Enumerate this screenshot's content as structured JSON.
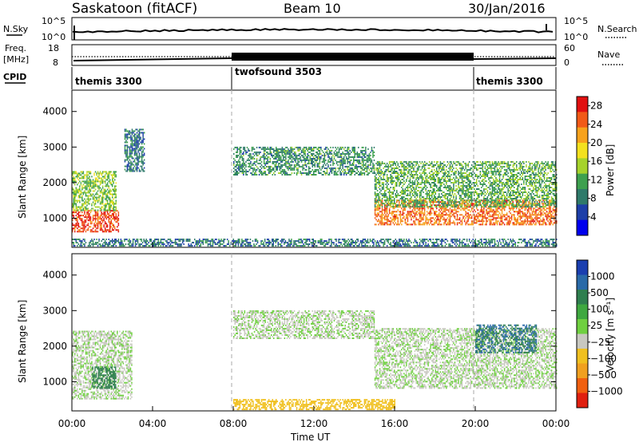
{
  "header": {
    "station": "Saskatoon (fitACF)",
    "beam": "Beam 10",
    "date": "30/Jan/2016"
  },
  "noise_panel": {
    "left_label": "N.Sky",
    "left_ticks": [
      "10^5",
      "10^0"
    ],
    "right_ticks": [
      "10^5",
      "10^0"
    ],
    "right_label": "N.Search"
  },
  "freq_panel": {
    "left_label_1": "Freq.",
    "left_label_2": "[MHz]",
    "left_ticks": [
      "18",
      "8"
    ],
    "right_ticks": [
      "60",
      "0"
    ],
    "right_label": "Nave"
  },
  "cpid_panel": {
    "label": "CPID",
    "segments": [
      {
        "name": "themis 3300",
        "start_h": 0,
        "end_h": 8
      },
      {
        "name": "twofsound 3503",
        "start_h": 8,
        "end_h": 20
      },
      {
        "name": "themis 3300",
        "start_h": 20,
        "end_h": 24
      }
    ]
  },
  "colors": {
    "power_scale": [
      "#0000ee",
      "#1d3fa8",
      "#2f7a6a",
      "#3ea04f",
      "#a6d32c",
      "#f3e11e",
      "#f7a21c",
      "#f15a17",
      "#e11010"
    ],
    "velocity_scale": [
      "#1a3fb0",
      "#2a6aa8",
      "#2f7f4f",
      "#3fa840",
      "#6fd040",
      "#c8c8c0",
      "#f0c020",
      "#f0a020",
      "#f06010",
      "#e02010"
    ]
  },
  "chart_data": [
    {
      "type": "heatmap",
      "title": "",
      "xlabel": "",
      "ylabel": "Slant Range [km]",
      "xlim": [
        0,
        24
      ],
      "ylim": [
        180,
        4600
      ],
      "x_ticks": [
        "00:00",
        "04:00",
        "08:00",
        "12:00",
        "16:00",
        "20:00",
        "00:00"
      ],
      "y_ticks": [
        1000,
        2000,
        3000,
        4000
      ],
      "colorbar_label": "Power [dB]",
      "colorbar_ticks": [
        4,
        8,
        12,
        16,
        20,
        24,
        28
      ],
      "colorbar_range": [
        0,
        30
      ],
      "features": [
        {
          "desc": "ground scatter band",
          "t_start": 0.0,
          "t_end": 2.3,
          "range_start": 600,
          "range_end": 1200,
          "power": 26
        },
        {
          "desc": "rising echo",
          "t_start": 0.0,
          "t_end": 2.2,
          "range_start": 1200,
          "range_end": 2300,
          "power": 14
        },
        {
          "desc": "late echo",
          "t_start": 2.6,
          "t_end": 3.6,
          "range_start": 2300,
          "range_end": 3500,
          "power": 8
        },
        {
          "desc": "near-range clutter",
          "t_start": 0.0,
          "t_end": 24.0,
          "range_start": 200,
          "range_end": 400,
          "power": 8
        },
        {
          "desc": "midday patch",
          "t_start": 8.0,
          "t_end": 15.0,
          "range_start": 2200,
          "range_end": 3000,
          "power": 10
        },
        {
          "desc": "evening band",
          "t_start": 15.0,
          "t_end": 24.0,
          "range_start": 800,
          "range_end": 1500,
          "power": 24
        },
        {
          "desc": "evening upper",
          "t_start": 15.0,
          "t_end": 24.0,
          "range_start": 1300,
          "range_end": 2600,
          "power": 12
        }
      ]
    },
    {
      "type": "heatmap",
      "title": "",
      "xlabel": "Time UT",
      "ylabel": "Slant Range [km]",
      "xlim": [
        0,
        24
      ],
      "ylim": [
        180,
        4600
      ],
      "x_ticks": [
        "00:00",
        "04:00",
        "08:00",
        "12:00",
        "16:00",
        "20:00",
        "00:00"
      ],
      "y_ticks": [
        1000,
        2000,
        3000,
        4000
      ],
      "colorbar_label": "Velocity [m s⁻¹]",
      "colorbar_ticks": [
        "1000",
        "500",
        "100",
        "25",
        "−25",
        "−100",
        "−500",
        "−1000"
      ],
      "features": [
        {
          "desc": "ground scatter",
          "t_start": 0.0,
          "t_end": 3.0,
          "range_start": 500,
          "range_end": 2400,
          "velocity": 0
        },
        {
          "desc": "positive patch",
          "t_start": 1.0,
          "t_end": 2.2,
          "range_start": 800,
          "range_end": 1400,
          "velocity": 100
        },
        {
          "desc": "low-range flow",
          "t_start": 8.0,
          "t_end": 16.0,
          "range_start": 200,
          "range_end": 500,
          "velocity": -50
        },
        {
          "desc": "midday ground scatter",
          "t_start": 8.0,
          "t_end": 15.0,
          "range_start": 2200,
          "range_end": 3000,
          "velocity": 0
        },
        {
          "desc": "evening ground scatter",
          "t_start": 15.0,
          "t_end": 24.0,
          "range_start": 800,
          "range_end": 2500,
          "velocity": 0
        },
        {
          "desc": "evening positive",
          "t_start": 20.0,
          "t_end": 23.0,
          "range_start": 1800,
          "range_end": 2600,
          "velocity": 300
        }
      ]
    }
  ]
}
